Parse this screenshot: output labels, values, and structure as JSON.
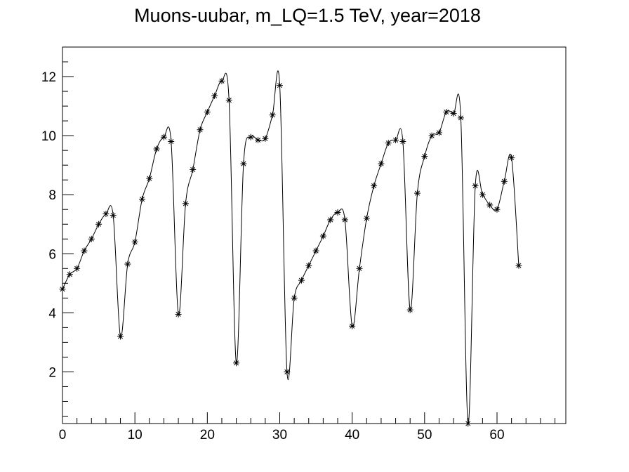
{
  "chart_data": {
    "type": "line",
    "title": "Muons-uubar, m_LQ=1.5 TeV, year=2018",
    "xlabel": "",
    "ylabel": "",
    "xlim": [
      0,
      69.5
    ],
    "ylim": [
      0.25,
      13
    ],
    "x_ticks": [
      0,
      10,
      20,
      30,
      40,
      50,
      60
    ],
    "x_tick_labels": [
      "0",
      "10",
      "20",
      "30",
      "40",
      "50",
      "60"
    ],
    "y_ticks": [
      2,
      4,
      6,
      8,
      10,
      12
    ],
    "y_tick_labels": [
      "2",
      "4",
      "6",
      "8",
      "10",
      "12"
    ],
    "marker": "asterisk",
    "line_style": "smooth",
    "color": "#000000",
    "grid": false,
    "legend": "none",
    "series": [
      {
        "x": [
          0,
          1,
          2,
          3,
          4,
          5,
          6,
          7,
          8,
          9,
          10,
          11,
          12,
          13,
          14,
          15,
          16,
          17,
          18,
          19,
          20,
          21,
          22,
          23,
          24,
          25,
          26,
          27,
          28,
          29,
          30,
          31,
          32,
          33,
          34,
          35,
          36,
          37,
          38,
          39,
          40,
          41,
          42,
          43,
          44,
          45,
          46,
          47,
          48,
          49,
          50,
          51,
          52,
          53,
          54,
          55,
          56,
          57,
          58,
          59,
          60,
          61,
          62,
          63
        ],
        "y": [
          4.8,
          5.3,
          5.5,
          6.1,
          6.5,
          7.0,
          7.35,
          7.3,
          3.2,
          5.65,
          6.4,
          7.85,
          8.55,
          9.55,
          9.95,
          9.8,
          3.95,
          7.7,
          8.85,
          10.2,
          10.8,
          11.35,
          11.85,
          11.2,
          2.3,
          9.05,
          9.95,
          9.85,
          9.9,
          10.7,
          11.7,
          2.0,
          4.5,
          5.1,
          5.6,
          6.1,
          6.6,
          7.15,
          7.4,
          7.15,
          3.55,
          5.5,
          7.2,
          8.3,
          9.05,
          9.75,
          9.85,
          9.8,
          4.1,
          8.05,
          9.3,
          10.0,
          10.1,
          10.8,
          10.75,
          10.6,
          0.25,
          8.3,
          8.0,
          7.65,
          7.5,
          8.45,
          9.25,
          5.6
        ]
      }
    ]
  }
}
